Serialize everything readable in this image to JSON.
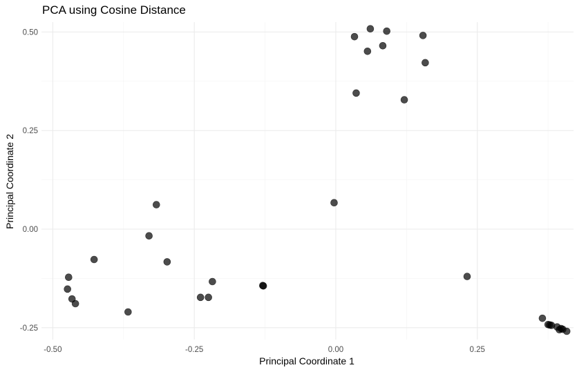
{
  "chart_data": {
    "type": "scatter",
    "title": "PCA using Cosine Distance",
    "xlabel": "Principal Coordinate 1",
    "ylabel": "Principal Coordinate 2",
    "xlim": [
      -0.52,
      0.42
    ],
    "ylim": [
      -0.28,
      0.525
    ],
    "x_ticks": [
      -0.5,
      -0.25,
      0,
      0.25
    ],
    "x_tick_labels": [
      "-0.50",
      "-0.25",
      "0.00",
      "0.25"
    ],
    "y_ticks": [
      -0.25,
      0,
      0.25,
      0.5
    ],
    "y_tick_labels": [
      "-0.25",
      "0.00",
      "0.25",
      "0.50"
    ],
    "grid": true,
    "point_color": "#333333",
    "points": [
      {
        "x": -0.472,
        "y": -0.122
      },
      {
        "x": -0.474,
        "y": -0.152
      },
      {
        "x": -0.466,
        "y": -0.177
      },
      {
        "x": -0.46,
        "y": -0.189
      },
      {
        "x": -0.427,
        "y": -0.077
      },
      {
        "x": -0.367,
        "y": -0.21
      },
      {
        "x": -0.33,
        "y": -0.017
      },
      {
        "x": -0.317,
        "y": 0.062
      },
      {
        "x": -0.298,
        "y": -0.083
      },
      {
        "x": -0.239,
        "y": -0.173
      },
      {
        "x": -0.225,
        "y": -0.173
      },
      {
        "x": -0.218,
        "y": -0.133
      },
      {
        "x": -0.128,
        "y": -0.144
      },
      {
        "x": -0.129,
        "y": -0.143
      },
      {
        "x": -0.003,
        "y": 0.067
      },
      {
        "x": 0.033,
        "y": 0.488
      },
      {
        "x": 0.036,
        "y": 0.345
      },
      {
        "x": 0.056,
        "y": 0.451
      },
      {
        "x": 0.061,
        "y": 0.508
      },
      {
        "x": 0.083,
        "y": 0.465
      },
      {
        "x": 0.09,
        "y": 0.502
      },
      {
        "x": 0.121,
        "y": 0.328
      },
      {
        "x": 0.154,
        "y": 0.491
      },
      {
        "x": 0.158,
        "y": 0.422
      },
      {
        "x": 0.232,
        "y": -0.12
      },
      {
        "x": 0.365,
        "y": -0.226
      },
      {
        "x": 0.375,
        "y": -0.242
      },
      {
        "x": 0.378,
        "y": -0.243
      },
      {
        "x": 0.381,
        "y": -0.244
      },
      {
        "x": 0.391,
        "y": -0.248
      },
      {
        "x": 0.395,
        "y": -0.255
      },
      {
        "x": 0.398,
        "y": -0.252
      },
      {
        "x": 0.401,
        "y": -0.254
      },
      {
        "x": 0.408,
        "y": -0.259
      }
    ]
  }
}
